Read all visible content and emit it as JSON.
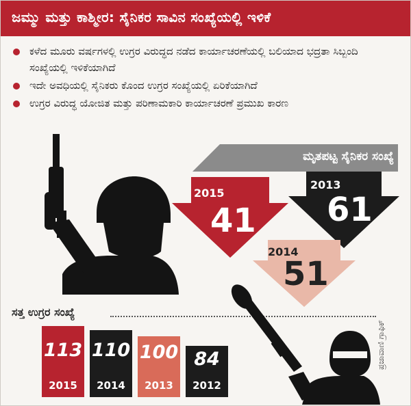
{
  "header": {
    "title": "ಜಮ್ಮು ಮತ್ತು ಕಾಶ್ಮೀರ: ಸೈನಿಕರ ಸಾವಿನ ಸಂಖ್ಯೆಯಲ್ಲಿ ಇಳಿಕೆ"
  },
  "bullets": [
    "ಕಳೆದ ಮೂರು ವರ್ಷಗಳಲ್ಲಿ ಉಗ್ರರ ವಿರುದ್ಧದ ನಡೆದ ಕಾರ್ಯಾಚರಣೆಯಲ್ಲಿ ಬಲಿಯಾದ ಭದ್ರತಾ ಸಿಬ್ಬಂದಿ ಸಂಖ್ಯೆಯಲ್ಲಿ ಇಳಿಕೆಯಾಗಿದೆ",
    "ಇದೇ ಅವಧಿಯಲ್ಲಿ ಸೈನಿಕರು ಕೊಂದ ಉಗ್ರರ ಸಂಖ್ಯೆಯಲ್ಲಿ ಏರಿಕೆಯಾಗಿದೆ",
    "ಉಗ್ರರ ವಿರುದ್ಧ ಯೋಜಿತ ಮತ್ತು ಪರಿಣಾಮಕಾರಿ ಕಾರ್ಯಾಚರಣೆ ಪ್ರಮುಖ ಕಾರಣ"
  ],
  "credit": "ಪ್ರಜಾವಾಣಿ ಗ್ರಾಫಿಕ್",
  "colors": {
    "red": "#b7232f",
    "black": "#1c1c1c",
    "salmon": "#d96b59",
    "pink": "#e9b8a8",
    "grey": "#8b8b8b"
  },
  "chart_data": [
    {
      "type": "bar",
      "title": "ಮೃತಪಟ್ಟ ಸೈನಿಕರ ಸಂಖ್ಯೆ",
      "categories": [
        "2015",
        "2013",
        "2014"
      ],
      "values": [
        41,
        61,
        51
      ]
    },
    {
      "type": "bar",
      "title": "ಸತ್ತ ಉಗ್ರರ ಸಂಖ್ಯೆ",
      "categories": [
        "2015",
        "2014",
        "2013",
        "2012"
      ],
      "values": [
        113,
        110,
        100,
        84
      ]
    }
  ]
}
